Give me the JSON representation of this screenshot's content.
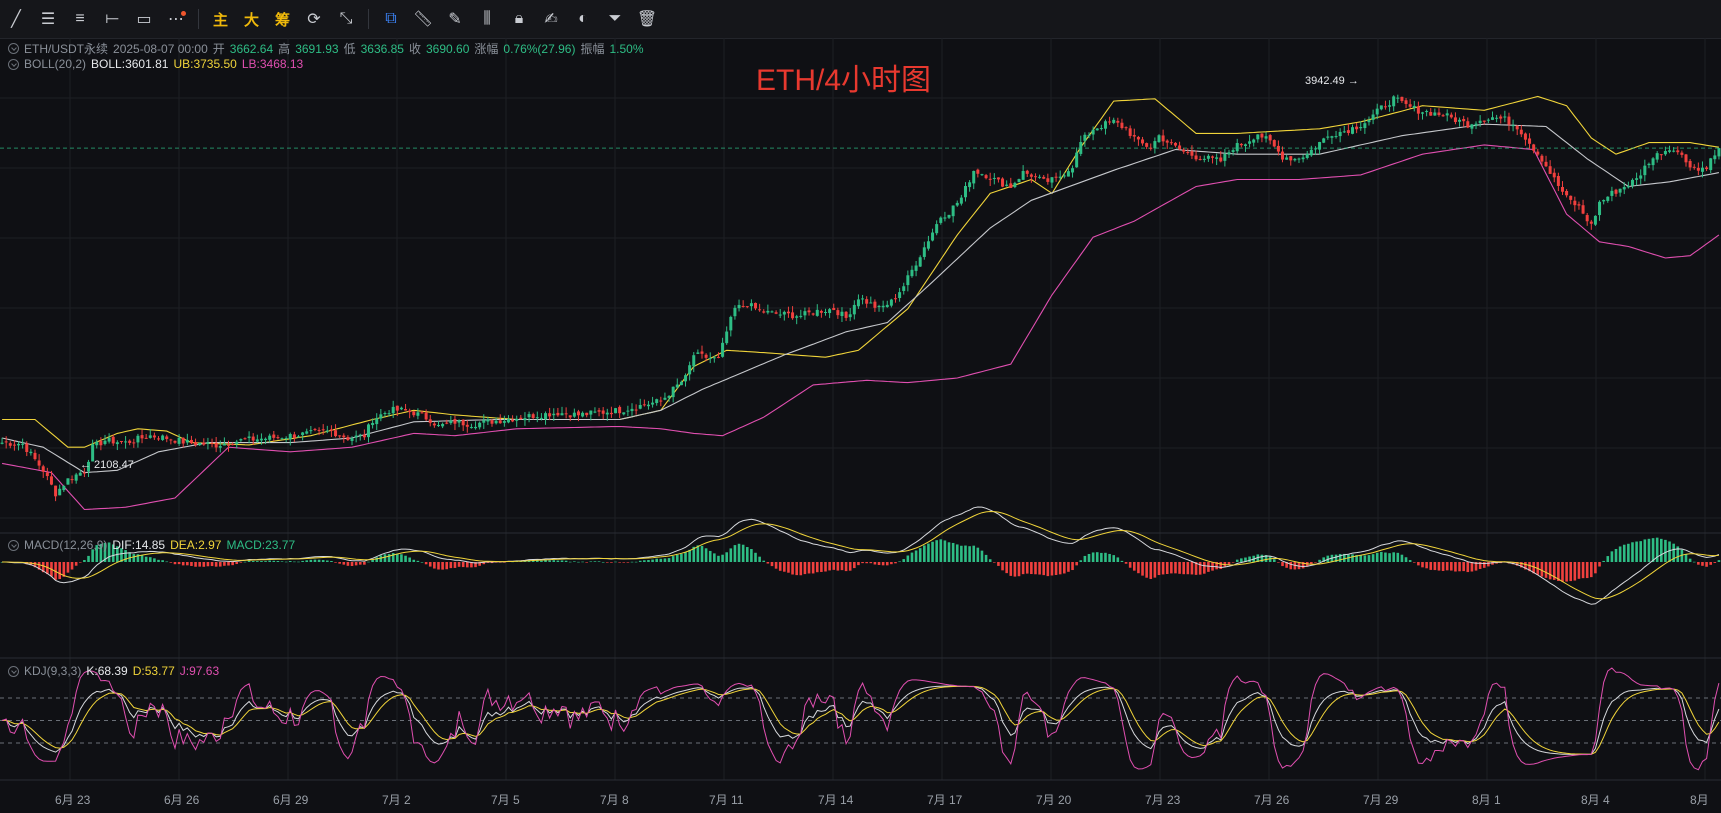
{
  "toolbar": {
    "tools": [
      "trend-line",
      "horizontal-lines",
      "parallel-channel",
      "horizontal-ray",
      "rectangle",
      "more"
    ],
    "cn_buttons": [
      "主",
      "大",
      "筹"
    ],
    "tools2": [
      "magnet",
      "ruler",
      "brush",
      "candles",
      "lock",
      "note",
      "eye",
      "filter",
      "trash"
    ]
  },
  "colors": {
    "up": "#2ebd85",
    "down": "#f0403e",
    "mid": "#c6c8cc",
    "ub": "#f0d43a",
    "lb": "#e04fb0",
    "dea": "#f0d43a",
    "dif": "#d6d8dc",
    "k": "#d6d8dc",
    "d": "#f0d43a",
    "j": "#e04fb0"
  },
  "legend": {
    "symbol": "ETH/USDT永续",
    "datetime": "2025-08-07 00:00",
    "open_label": "开",
    "open": "3662.64",
    "high_label": "高",
    "high": "3691.93",
    "low_label": "低",
    "low": "3636.85",
    "close_label": "收",
    "close": "3690.60",
    "chg_label": "涨幅",
    "chg": "0.76%(27.96)",
    "amp_label": "振幅",
    "amp": "1.50%"
  },
  "boll": {
    "name": "BOLL(20,2)",
    "mid": "BOLL:3601.81",
    "ub": "UB:3735.50",
    "lb": "LB:3468.13"
  },
  "macd": {
    "name": "MACD(12,26,9)",
    "dif": "DIF:14.85",
    "dea": "DEA:2.97",
    "macd": "MACD:23.77"
  },
  "kdj": {
    "name": "KDJ(9,3,3)",
    "k": "K:68.39",
    "d": "D:53.77",
    "j": "J:97.63"
  },
  "title": "ETH/4小时图",
  "annotations": {
    "high": "3942.49 →",
    "low": "← 2108.47"
  },
  "chart_data": {
    "type": "candlestick",
    "interval": "4h",
    "x_ticks": [
      "6月 23",
      "6月 26",
      "6月 29",
      "7月 2",
      "7月 5",
      "7月 8",
      "7月 11",
      "7月 14",
      "7月 17",
      "7月 20",
      "7月 23",
      "7月 26",
      "7月 29",
      "8月 1",
      "8月 4",
      "8月"
    ],
    "close_anchors": [
      [
        0,
        2420
      ],
      [
        5,
        2415
      ],
      [
        10,
        2300
      ],
      [
        13,
        2200
      ],
      [
        16,
        2260
      ],
      [
        20,
        2300
      ],
      [
        22,
        2400
      ],
      [
        25,
        2430
      ],
      [
        30,
        2420
      ],
      [
        36,
        2450
      ],
      [
        40,
        2440
      ],
      [
        45,
        2420
      ],
      [
        52,
        2410
      ],
      [
        58,
        2430
      ],
      [
        65,
        2440
      ],
      [
        70,
        2450
      ],
      [
        75,
        2460
      ],
      [
        80,
        2470
      ],
      [
        84,
        2440
      ],
      [
        88,
        2450
      ],
      [
        90,
        2520
      ],
      [
        94,
        2560
      ],
      [
        97,
        2560
      ],
      [
        100,
        2550
      ],
      [
        104,
        2520
      ],
      [
        106,
        2490
      ],
      [
        110,
        2510
      ],
      [
        114,
        2500
      ],
      [
        118,
        2510
      ],
      [
        122,
        2520
      ],
      [
        126,
        2530
      ],
      [
        130,
        2540
      ],
      [
        135,
        2550
      ],
      [
        140,
        2540
      ],
      [
        145,
        2550
      ],
      [
        150,
        2560
      ],
      [
        155,
        2580
      ],
      [
        160,
        2600
      ],
      [
        163,
        2650
      ],
      [
        166,
        2700
      ],
      [
        168,
        2800
      ],
      [
        171,
        2790
      ],
      [
        174,
        2780
      ],
      [
        176,
        2900
      ],
      [
        178,
        3000
      ],
      [
        181,
        3020
      ],
      [
        184,
        2990
      ],
      [
        187,
        2980
      ],
      [
        190,
        2975
      ],
      [
        194,
        2970
      ],
      [
        198,
        2990
      ],
      [
        202,
        3000
      ],
      [
        205,
        2960
      ],
      [
        208,
        3050
      ],
      [
        210,
        3030
      ],
      [
        213,
        3000
      ],
      [
        216,
        3030
      ],
      [
        219,
        3100
      ],
      [
        222,
        3200
      ],
      [
        225,
        3300
      ],
      [
        228,
        3400
      ],
      [
        230,
        3420
      ],
      [
        233,
        3480
      ],
      [
        236,
        3600
      ],
      [
        239,
        3580
      ],
      [
        242,
        3550
      ],
      [
        245,
        3530
      ],
      [
        248,
        3590
      ],
      [
        250,
        3580
      ],
      [
        253,
        3550
      ],
      [
        256,
        3560
      ],
      [
        260,
        3620
      ],
      [
        262,
        3720
      ],
      [
        265,
        3780
      ],
      [
        268,
        3800
      ],
      [
        270,
        3810
      ],
      [
        273,
        3780
      ],
      [
        276,
        3720
      ],
      [
        279,
        3700
      ],
      [
        281,
        3750
      ],
      [
        284,
        3710
      ],
      [
        287,
        3680
      ],
      [
        290,
        3660
      ],
      [
        293,
        3650
      ],
      [
        296,
        3640
      ],
      [
        299,
        3700
      ],
      [
        302,
        3720
      ],
      [
        305,
        3760
      ],
      [
        308,
        3720
      ],
      [
        311,
        3660
      ],
      [
        314,
        3650
      ],
      [
        317,
        3670
      ],
      [
        320,
        3720
      ],
      [
        323,
        3760
      ],
      [
        326,
        3770
      ],
      [
        329,
        3790
      ],
      [
        332,
        3820
      ],
      [
        335,
        3870
      ],
      [
        338,
        3910
      ],
      [
        341,
        3880
      ],
      [
        344,
        3860
      ],
      [
        347,
        3850
      ],
      [
        350,
        3840
      ],
      [
        353,
        3820
      ],
      [
        356,
        3800
      ],
      [
        359,
        3820
      ],
      [
        362,
        3830
      ],
      [
        365,
        3820
      ],
      [
        368,
        3790
      ],
      [
        371,
        3720
      ],
      [
        374,
        3650
      ],
      [
        377,
        3560
      ],
      [
        380,
        3480
      ],
      [
        383,
        3440
      ],
      [
        386,
        3360
      ],
      [
        388,
        3460
      ],
      [
        391,
        3500
      ],
      [
        394,
        3530
      ],
      [
        397,
        3560
      ],
      [
        400,
        3640
      ],
      [
        403,
        3680
      ],
      [
        406,
        3700
      ],
      [
        409,
        3640
      ],
      [
        412,
        3600
      ],
      [
        414,
        3620
      ],
      [
        417,
        3690
      ]
    ],
    "bands_anchors": {
      "ub": [
        [
          0,
          2520
        ],
        [
          8,
          2520
        ],
        [
          16,
          2400
        ],
        [
          20,
          2400
        ],
        [
          28,
          2460
        ],
        [
          33,
          2480
        ],
        [
          40,
          2470
        ],
        [
          46,
          2420
        ],
        [
          60,
          2410
        ],
        [
          75,
          2450
        ],
        [
          90,
          2520
        ],
        [
          100,
          2560
        ],
        [
          110,
          2540
        ],
        [
          125,
          2520
        ],
        [
          150,
          2520
        ],
        [
          160,
          2560
        ],
        [
          168,
          2750
        ],
        [
          176,
          2820
        ],
        [
          185,
          2810
        ],
        [
          200,
          2790
        ],
        [
          208,
          2820
        ],
        [
          220,
          3000
        ],
        [
          232,
          3320
        ],
        [
          240,
          3500
        ],
        [
          250,
          3560
        ],
        [
          255,
          3500
        ],
        [
          262,
          3700
        ],
        [
          270,
          3900
        ],
        [
          280,
          3910
        ],
        [
          290,
          3760
        ],
        [
          300,
          3760
        ],
        [
          320,
          3780
        ],
        [
          330,
          3810
        ],
        [
          345,
          3880
        ],
        [
          360,
          3860
        ],
        [
          373,
          3920
        ],
        [
          380,
          3880
        ],
        [
          386,
          3740
        ],
        [
          392,
          3670
        ],
        [
          400,
          3720
        ],
        [
          410,
          3720
        ],
        [
          417,
          3700
        ]
      ],
      "mid": [
        [
          0,
          2440
        ],
        [
          10,
          2400
        ],
        [
          20,
          2290
        ],
        [
          28,
          2300
        ],
        [
          38,
          2380
        ],
        [
          50,
          2420
        ],
        [
          70,
          2420
        ],
        [
          85,
          2440
        ],
        [
          100,
          2510
        ],
        [
          120,
          2520
        ],
        [
          150,
          2520
        ],
        [
          160,
          2560
        ],
        [
          170,
          2650
        ],
        [
          190,
          2800
        ],
        [
          205,
          2900
        ],
        [
          215,
          2940
        ],
        [
          225,
          3100
        ],
        [
          240,
          3350
        ],
        [
          250,
          3470
        ],
        [
          270,
          3600
        ],
        [
          285,
          3690
        ],
        [
          300,
          3670
        ],
        [
          320,
          3670
        ],
        [
          340,
          3750
        ],
        [
          360,
          3800
        ],
        [
          375,
          3790
        ],
        [
          385,
          3650
        ],
        [
          395,
          3530
        ],
        [
          405,
          3550
        ],
        [
          417,
          3590
        ]
      ],
      "lb": [
        [
          0,
          2330
        ],
        [
          12,
          2290
        ],
        [
          20,
          2130
        ],
        [
          30,
          2140
        ],
        [
          42,
          2180
        ],
        [
          55,
          2400
        ],
        [
          70,
          2380
        ],
        [
          85,
          2400
        ],
        [
          100,
          2460
        ],
        [
          110,
          2450
        ],
        [
          125,
          2480
        ],
        [
          150,
          2490
        ],
        [
          160,
          2480
        ],
        [
          168,
          2460
        ],
        [
          175,
          2450
        ],
        [
          185,
          2530
        ],
        [
          197,
          2670
        ],
        [
          210,
          2690
        ],
        [
          220,
          2680
        ],
        [
          232,
          2700
        ],
        [
          245,
          2760
        ],
        [
          255,
          3060
        ],
        [
          265,
          3310
        ],
        [
          275,
          3380
        ],
        [
          290,
          3530
        ],
        [
          300,
          3560
        ],
        [
          315,
          3560
        ],
        [
          330,
          3580
        ],
        [
          345,
          3670
        ],
        [
          360,
          3710
        ],
        [
          372,
          3690
        ],
        [
          380,
          3410
        ],
        [
          388,
          3290
        ],
        [
          395,
          3270
        ],
        [
          404,
          3220
        ],
        [
          410,
          3230
        ],
        [
          417,
          3320
        ]
      ]
    },
    "y_range": [
      2050,
      4000
    ],
    "annotations": [
      {
        "label": "3942.49",
        "type": "high"
      },
      {
        "label": "2108.47",
        "type": "low"
      }
    ],
    "indicators": {
      "macd": {
        "dif": 14.85,
        "dea": 2.97,
        "macd": 23.77
      },
      "kdj": {
        "k": 68.39,
        "d": 53.77,
        "j": 97.63
      }
    }
  }
}
